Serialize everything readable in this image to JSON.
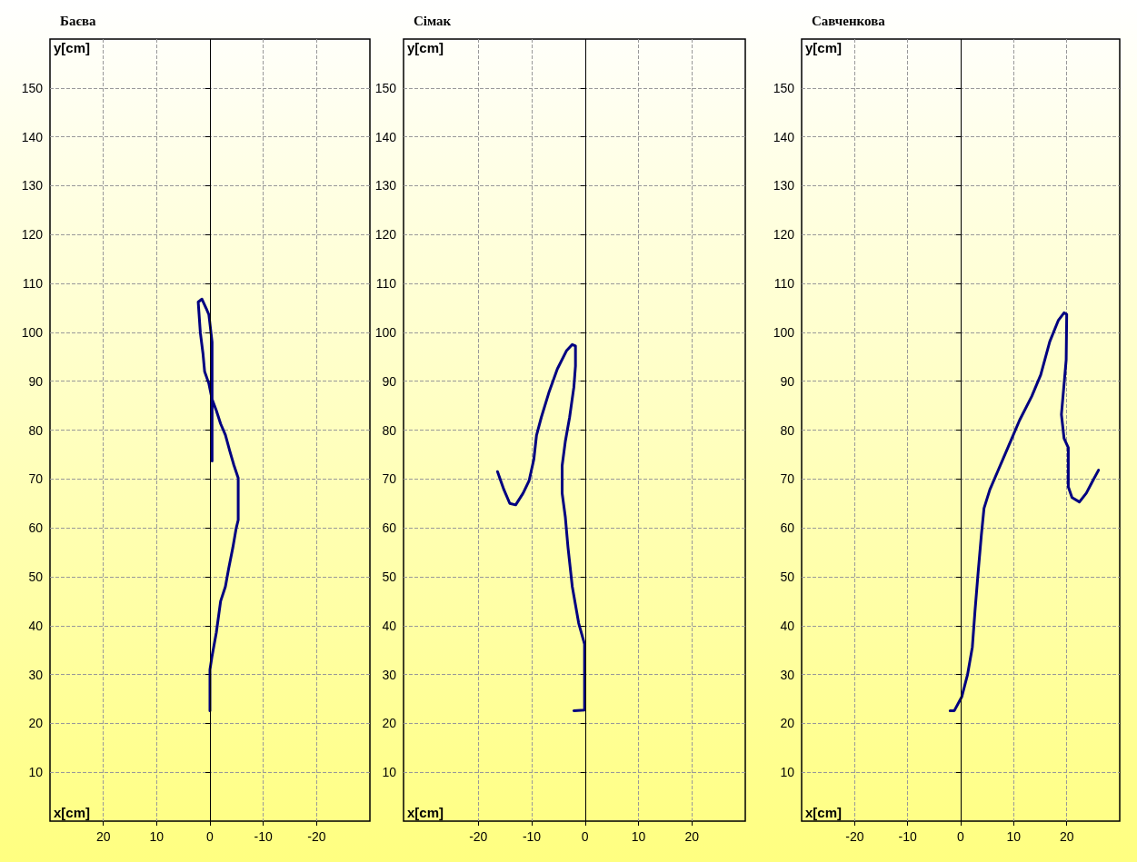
{
  "chart_data": [
    {
      "type": "line",
      "title": "Баєва",
      "xlabel": "x[cm]",
      "ylabel": "y[cm]",
      "xlim": [
        30,
        -30
      ],
      "xticks": [
        20,
        10,
        0,
        -10,
        -20
      ],
      "ylim": [
        0,
        160
      ],
      "yticks": [
        10,
        20,
        30,
        40,
        50,
        60,
        70,
        80,
        90,
        100,
        110,
        120,
        130,
        140,
        150
      ],
      "grid": true,
      "ref_lines": [
        {
          "axis": "x",
          "value": 0
        }
      ],
      "series": [
        {
          "color": "#000080",
          "x": [
            0,
            0,
            -0.4,
            -1.2,
            -2,
            -2.9,
            -3.5,
            -4.3,
            -4.9,
            -5.3,
            -5.3,
            -4.5,
            -3.7,
            -2.9,
            -2,
            -1.2,
            -0.4,
            0.2,
            1,
            1.3,
            1.8,
            2.2,
            1.5,
            0.7,
            0.2,
            -0.4,
            -0.4
          ],
          "values": [
            22.6,
            31,
            33.8,
            38.6,
            45,
            48,
            51.6,
            56,
            59.8,
            61.6,
            70.2,
            72.8,
            75.8,
            79,
            81.3,
            84,
            86.3,
            89.5,
            92,
            95.6,
            99.9,
            106.2,
            106.8,
            104.9,
            103.6,
            98,
            73.7
          ]
        }
      ]
    },
    {
      "type": "line",
      "title": "Сімак",
      "xlabel": "x[cm]",
      "ylabel": "y[cm]",
      "xlim": [
        -34,
        30
      ],
      "xticks": [
        -20,
        -10,
        0,
        10,
        20
      ],
      "ylim": [
        0,
        160
      ],
      "yticks": [
        10,
        20,
        30,
        40,
        50,
        60,
        70,
        80,
        90,
        100,
        110,
        120,
        130,
        140,
        150
      ],
      "grid": true,
      "ref_lines": [
        {
          "axis": "x",
          "value": 0
        }
      ],
      "series": [
        {
          "color": "#000080",
          "x": [
            -2.1,
            -0.1,
            -0.1,
            -1.2,
            -2.4,
            -3.2,
            -3.7,
            -4.3,
            -4.3,
            -3.7,
            -2.9,
            -2.1,
            -1.8,
            -1.8,
            -2.4,
            -3.5,
            -5.2,
            -6.8,
            -8.2,
            -9.1,
            -9.6,
            -10.5,
            -11.6,
            -13,
            -14.1,
            -15.2,
            -16.4
          ],
          "values": [
            22.6,
            22.7,
            36.2,
            40.5,
            48,
            56,
            62.2,
            67.1,
            72.7,
            77.7,
            82.6,
            88.8,
            93.1,
            97.2,
            97.5,
            96.2,
            92.5,
            87.6,
            82.6,
            78.9,
            74,
            69.6,
            67.1,
            64.7,
            65,
            67.8,
            71.5
          ]
        }
      ]
    },
    {
      "type": "line",
      "title": "Савченкова",
      "xlabel": "x[cm]",
      "ylabel": "y[cm]",
      "xlim": [
        -30,
        30
      ],
      "xticks": [
        -20,
        -10,
        0,
        10,
        20
      ],
      "ylim": [
        0,
        160
      ],
      "yticks": [
        10,
        20,
        30,
        40,
        50,
        60,
        70,
        80,
        90,
        100,
        110,
        120,
        130,
        140,
        150
      ],
      "grid": true,
      "ref_lines": [
        {
          "axis": "x",
          "value": 0
        }
      ],
      "series": [
        {
          "color": "#000080",
          "x": [
            -2,
            -1.2,
            0.2,
            1.3,
            2.2,
            2.7,
            3.3,
            3.9,
            4.4,
            5.5,
            7.2,
            8.9,
            11.1,
            13.4,
            15.1,
            16.8,
            18.4,
            19.5,
            20,
            19.9,
            19,
            19.5,
            20.3,
            20.3,
            21,
            22.4,
            23.7,
            24.9,
            26
          ],
          "values": [
            22.6,
            22.6,
            25.4,
            30,
            35.6,
            43,
            51,
            58.5,
            64,
            67.8,
            72.1,
            76.4,
            82,
            86.9,
            91.3,
            98.1,
            102.4,
            104,
            103.7,
            94.4,
            83.2,
            78.3,
            76.4,
            68.4,
            66.2,
            65.3,
            67.1,
            69.6,
            71.8
          ]
        }
      ]
    }
  ]
}
